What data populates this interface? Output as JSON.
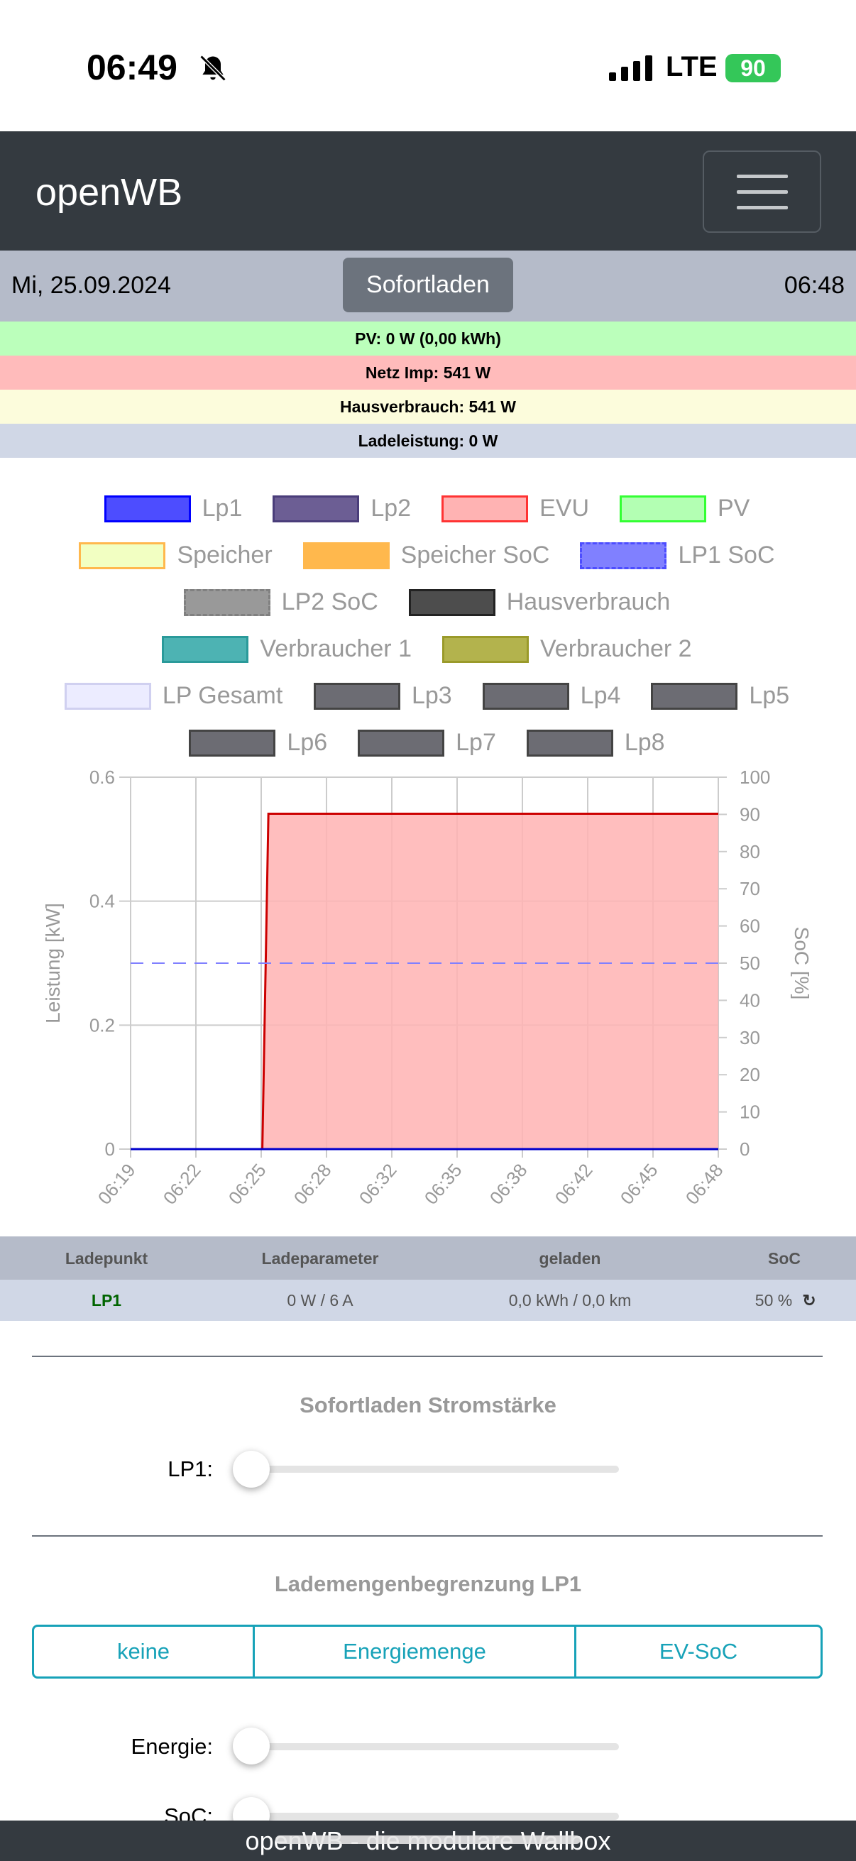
{
  "status_bar": {
    "time": "06:49",
    "network": "LTE",
    "battery": "90"
  },
  "navbar": {
    "brand": "openWB"
  },
  "header": {
    "date": "Mi, 25.09.2024",
    "mode_button": "Sofortladen",
    "time": "06:48"
  },
  "info": {
    "pv": "PV: 0 W (0,00 kWh)",
    "netz": "Netz Imp: 541 W",
    "haus": "Hausverbrauch: 541 W",
    "lade": "Ladeleistung: 0 W"
  },
  "colors": {
    "pv_bg": "#bbffbb",
    "netz_bg": "#ffbbbb",
    "haus_bg": "#fcfcdc",
    "lade_bg": "#d0d7e6",
    "accent": "#17a2b8"
  },
  "legend": [
    {
      "label": "Lp1",
      "fill": "#4d4dff",
      "border": "#0000ff"
    },
    {
      "label": "Lp2",
      "fill": "#6c5e94",
      "border": "#4a3d7a"
    },
    {
      "label": "EVU",
      "fill": "#ffb3b3",
      "border": "#ff3333"
    },
    {
      "label": "PV",
      "fill": "#b3ffb3",
      "border": "#33ff33"
    },
    {
      "label": "Speicher",
      "fill": "#f2ffc2",
      "border": "#ffb84d"
    },
    {
      "label": "Speicher SoC",
      "fill": "#ffb84d",
      "border": "#ffb84d",
      "dashed": true
    },
    {
      "label": "LP1 SoC",
      "fill": "#8080ff",
      "border": "#4d4dff",
      "dashed": true
    },
    {
      "label": "LP2 SoC",
      "fill": "#999999",
      "border": "#808080",
      "dashed": true
    },
    {
      "label": "Hausverbrauch",
      "fill": "#4d4d4d",
      "border": "#222222"
    },
    {
      "label": "Verbraucher 1",
      "fill": "#4db3b3",
      "border": "#2a9a9a"
    },
    {
      "label": "Verbraucher 2",
      "fill": "#b3b34d",
      "border": "#9a9a2a"
    },
    {
      "label": "LP Gesamt",
      "fill": "#ececff",
      "border": "#d0d0f0"
    },
    {
      "label": "Lp3",
      "fill": "#6c6c73",
      "border": "#444"
    },
    {
      "label": "Lp4",
      "fill": "#6c6c73",
      "border": "#444"
    },
    {
      "label": "Lp5",
      "fill": "#6c6c73",
      "border": "#444"
    },
    {
      "label": "Lp6",
      "fill": "#6c6c73",
      "border": "#444"
    },
    {
      "label": "Lp7",
      "fill": "#6c6c73",
      "border": "#444"
    },
    {
      "label": "Lp8",
      "fill": "#6c6c73",
      "border": "#444"
    }
  ],
  "chart_data": {
    "type": "line",
    "ylabel": "Leistung [kW]",
    "y2label": "SoC [%]",
    "ylim": [
      0,
      0.6
    ],
    "yticks": [
      "0",
      "0.2",
      "0.4",
      "0.6"
    ],
    "y2lim": [
      0,
      100
    ],
    "y2ticks": [
      "0",
      "10",
      "20",
      "30",
      "40",
      "50",
      "60",
      "70",
      "80",
      "90",
      "100"
    ],
    "xticks": [
      "06:19",
      "06:22",
      "06:25",
      "06:28",
      "06:32",
      "06:35",
      "06:38",
      "06:42",
      "06:45",
      "06:48"
    ],
    "xlim": [
      0,
      29
    ],
    "series": [
      {
        "name": "EVU",
        "color": "#cc0000",
        "fill": "#ffb3b3",
        "x": [
          0,
          6.5,
          6.8,
          29
        ],
        "y": [
          0,
          0,
          0.541,
          0.541
        ]
      },
      {
        "name": "Lp1",
        "color": "#0000cc",
        "x": [
          0,
          29
        ],
        "y": [
          0,
          0
        ]
      },
      {
        "name": "LP1 SoC",
        "color": "#8080ff",
        "dashed": true,
        "axis": "right",
        "x": [
          0,
          29
        ],
        "y": [
          50,
          50
        ]
      }
    ],
    "grid": true
  },
  "table": {
    "headers": [
      "Ladepunkt",
      "Ladeparameter",
      "geladen",
      "SoC"
    ],
    "rows": [
      {
        "name": "LP1",
        "param": "0 W / 6 A",
        "charged": "0,0 kWh / 0,0 km",
        "soc": "50 %"
      }
    ]
  },
  "sofortladen": {
    "title": "Sofortladen Stromstärke",
    "lp1_label": "LP1:",
    "lp1_value": 0
  },
  "limit": {
    "title": "Lademengenbegrenzung LP1",
    "options": [
      "keine",
      "Energiemenge",
      "EV-SoC"
    ],
    "energie_label": "Energie:",
    "soc_label": "SoC:",
    "energie_value": 0,
    "soc_value": 0
  },
  "footer": {
    "text": "openWB - die modulare Wallbox"
  }
}
